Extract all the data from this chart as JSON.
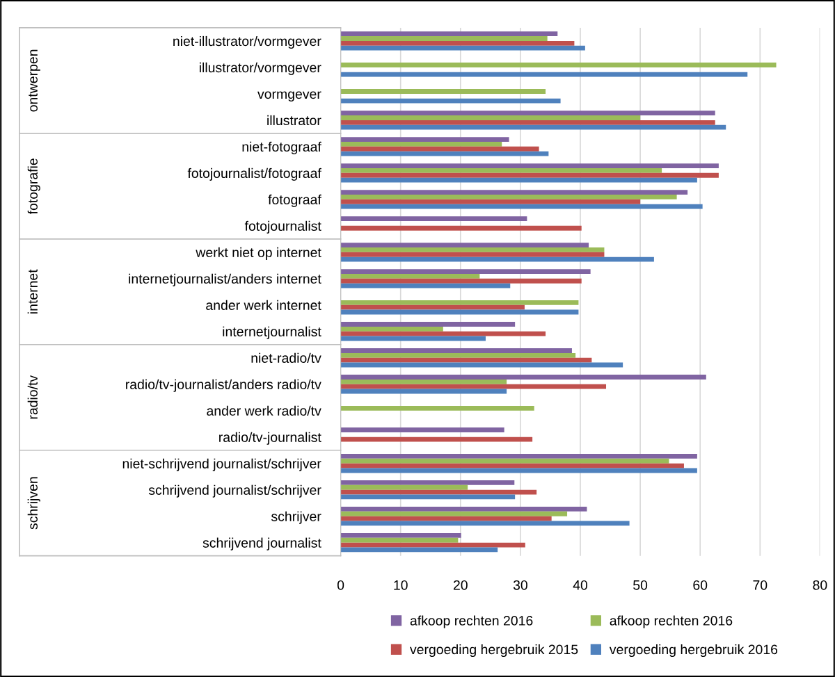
{
  "chart_data": {
    "type": "bar",
    "orientation": "horizontal",
    "categories": [
      "niet-illustrator/vormgever",
      "illustrator/vormgever",
      "vormgever",
      "illustrator",
      "niet-fotograaf",
      "fotojournalist/fotograaf",
      "fotograaf",
      "fotojournalist",
      "werkt niet op internet",
      "internetjournalist/anders internet",
      "ander werk internet",
      "internetjournalist",
      "niet-radio/tv",
      "radio/tv-journalist/anders radio/tv",
      "ander werk radio/tv",
      "radio/tv-journalist",
      "niet-schrijvend journalist/schrijver",
      "schrijvend journalist/schrijver",
      "schrijver",
      "schrijvend journalist"
    ],
    "series": [
      {
        "name": "afkoop rechten 2016",
        "color": "#8064a2",
        "values": [
          36.2,
          null,
          null,
          62.5,
          28.1,
          63.1,
          57.9,
          31.1,
          41.4,
          41.7,
          null,
          29.1,
          38.6,
          61.0,
          null,
          27.3,
          59.5,
          29.0,
          41.1,
          20.1
        ]
      },
      {
        "name": "afkoop rechten 2016",
        "color": "#9bbb59",
        "values": [
          34.5,
          72.7,
          34.2,
          50.0,
          26.9,
          53.6,
          56.1,
          null,
          44.0,
          23.2,
          39.7,
          17.1,
          39.2,
          27.7,
          32.3,
          null,
          54.8,
          21.2,
          37.8,
          19.6
        ]
      },
      {
        "name": "vergoeding hergebruik 2015",
        "color": "#c0504d",
        "values": [
          39.0,
          null,
          null,
          62.5,
          33.1,
          63.1,
          50.0,
          40.2,
          44.0,
          40.2,
          30.7,
          34.2,
          41.9,
          44.3,
          null,
          32.0,
          57.3,
          32.7,
          35.2,
          30.8
        ]
      },
      {
        "name": "vergoeding hergebruik 2016",
        "color": "#4f81bd",
        "values": [
          40.8,
          67.9,
          36.7,
          64.3,
          34.7,
          59.5,
          60.4,
          null,
          52.3,
          28.3,
          39.7,
          24.2,
          47.1,
          27.7,
          null,
          null,
          59.5,
          29.1,
          48.2,
          26.2
        ]
      }
    ],
    "xlim": [
      0,
      80
    ],
    "xticks": [
      0,
      10,
      20,
      30,
      40,
      50,
      60,
      70,
      80
    ],
    "grid": "x",
    "legend": "bottom",
    "annotations": [
      "ontwerpen",
      "fotografie",
      "internet",
      "radio/tv",
      "schrijven"
    ]
  }
}
